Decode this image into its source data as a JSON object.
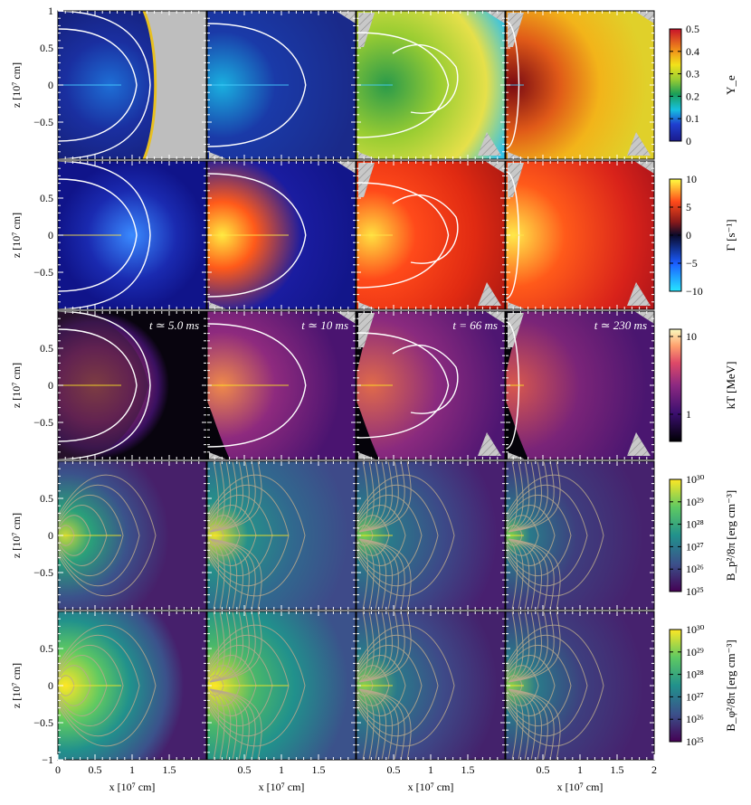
{
  "figure": {
    "rows": [
      {
        "quantity": "ye",
        "label": "Y_e",
        "colormap": "jet",
        "ticks": [
          "0.5",
          "0.4",
          "0.3",
          "0.2",
          "0.1",
          "0"
        ]
      },
      {
        "quantity": "gamma",
        "label": "Γ [s⁻¹]",
        "colormap": "diverging",
        "ticks": [
          "10",
          "5",
          "0",
          "−5",
          "−10"
        ]
      },
      {
        "quantity": "kT",
        "label": "kT [MeV]",
        "colormap": "inferno",
        "ticks": [
          "10",
          "1"
        ]
      },
      {
        "quantity": "bp",
        "label": "B_p²/8π [erg cm⁻³]",
        "colormap": "viridis",
        "ticks": [
          "10³⁰",
          "10²⁹",
          "10²⁸",
          "10²⁷",
          "10²⁶",
          "10²⁵"
        ]
      },
      {
        "quantity": "bphi",
        "label": "B_φ²/8π [erg cm⁻³]",
        "colormap": "viridis",
        "ticks": [
          "10³⁰",
          "10²⁹",
          "10²⁸",
          "10²⁷",
          "10²⁶",
          "10²⁵"
        ]
      }
    ],
    "times": [
      "t ≃ 5.0 ms",
      "t ≃ 10 ms",
      "t = 66 ms",
      "t ≃ 230 ms"
    ],
    "y_axis": {
      "label": "z [10⁷ cm]",
      "ticks_top": [
        "1",
        "0.5",
        "0",
        "−0.5"
      ],
      "ticks": [
        "0.5",
        "0",
        "−0.5"
      ],
      "ticks_bottom": [
        "0.5",
        "0",
        "−0.5",
        "−1"
      ]
    },
    "x_axis": {
      "label": "x [10⁷ cm]",
      "ticks_col1": [
        "0",
        "0.5",
        "1",
        "1.5"
      ],
      "ticks_other": [
        "0.5",
        "1",
        "1.5"
      ],
      "ticks_last": [
        "0.5",
        "1",
        "1.5",
        "2"
      ]
    }
  }
}
